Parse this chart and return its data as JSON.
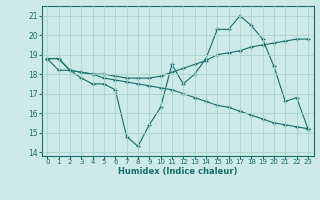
{
  "xlabel": "Humidex (Indice chaleur)",
  "xlim": [
    -0.5,
    23.5
  ],
  "ylim": [
    13.8,
    21.5
  ],
  "yticks": [
    14,
    15,
    16,
    17,
    18,
    19,
    20,
    21
  ],
  "xtick_labels": [
    "0",
    "1",
    "2",
    "3",
    "4",
    "5",
    "6",
    "7",
    "8",
    "9",
    "10",
    "11",
    "12",
    "13",
    "14",
    "15",
    "16",
    "17",
    "18",
    "19",
    "20",
    "21",
    "22",
    "23"
  ],
  "background_color": "#cceae8",
  "grid_color": "#aad4d0",
  "line_color": "#1a6b6b",
  "line1": [
    18.8,
    18.8,
    18.2,
    17.8,
    17.5,
    17.5,
    17.2,
    14.8,
    14.3,
    15.4,
    16.3,
    18.5,
    17.5,
    18.0,
    18.8,
    20.3,
    20.3,
    21.0,
    20.5,
    19.8,
    18.4,
    16.6,
    16.8,
    15.2
  ],
  "line2": [
    18.8,
    18.2,
    18.2,
    18.1,
    18.0,
    17.8,
    17.7,
    17.6,
    17.5,
    17.4,
    17.3,
    17.2,
    17.0,
    16.8,
    16.6,
    16.4,
    16.3,
    16.1,
    15.9,
    15.7,
    15.5,
    15.4,
    15.3,
    15.2
  ],
  "line3": [
    18.8,
    18.8,
    18.2,
    18.1,
    18.0,
    18.0,
    17.9,
    17.8,
    17.8,
    17.8,
    17.9,
    18.1,
    18.3,
    18.5,
    18.7,
    19.0,
    19.1,
    19.2,
    19.4,
    19.5,
    19.6,
    19.7,
    19.8,
    19.8
  ]
}
